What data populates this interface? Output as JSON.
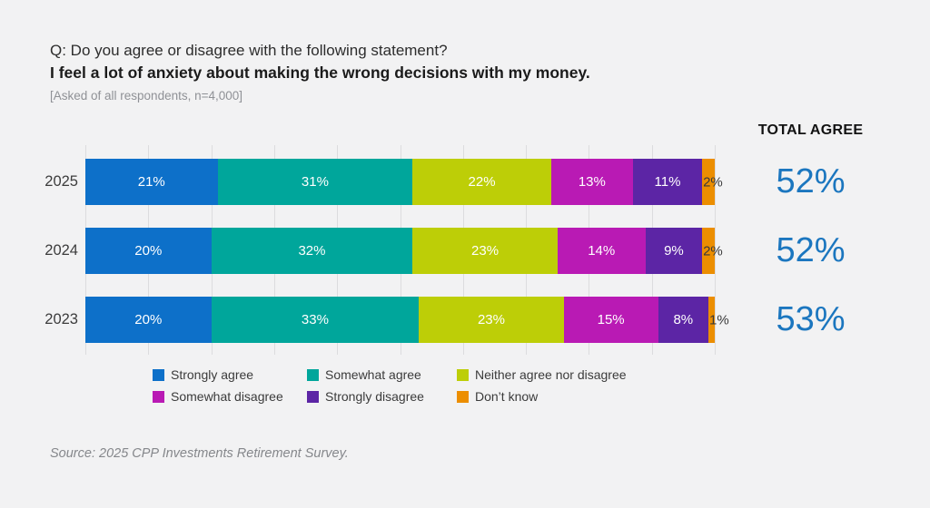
{
  "header": {
    "question_prefix": "Q: Do you agree or disagree with the following statement?",
    "statement": "I feel a lot of anxiety about making the wrong decisions with my money.",
    "note": "[Asked of all respondents, n=4,000]"
  },
  "total_agree": {
    "label": "TOTAL AGREE",
    "display_values": [
      "52%",
      "52%",
      "53%"
    ],
    "color": "#1b76bf"
  },
  "chart_data": {
    "type": "bar",
    "orientation": "horizontal-stacked",
    "title": "I feel a lot of anxiety about making the wrong decisions with my money.",
    "categories": [
      "2025",
      "2024",
      "2023"
    ],
    "series": [
      {
        "name": "Strongly agree",
        "color": "#0d70c9",
        "values": [
          21,
          20,
          20
        ]
      },
      {
        "name": "Somewhat agree",
        "color": "#00a69b",
        "values": [
          31,
          32,
          33
        ]
      },
      {
        "name": "Neither agree nor disagree",
        "color": "#bdce07",
        "values": [
          22,
          23,
          23
        ]
      },
      {
        "name": "Somewhat disagree",
        "color": "#b91ab4",
        "values": [
          13,
          14,
          15
        ]
      },
      {
        "name": "Strongly disagree",
        "color": "#5c25a5",
        "values": [
          11,
          9,
          8
        ]
      },
      {
        "name": "Don’t know",
        "color": "#ec8e00",
        "values": [
          2,
          2,
          1
        ]
      }
    ],
    "total_agree": [
      52,
      52,
      53
    ],
    "xlim": [
      0,
      100
    ],
    "unit": "%",
    "gridlines": "vertical every 10%",
    "gridline_color": "#dcdcde",
    "legend_position": "bottom"
  },
  "legend": {
    "items": [
      {
        "label": "Strongly agree",
        "color": "#0d70c9"
      },
      {
        "label": "Somewhat agree",
        "color": "#00a69b"
      },
      {
        "label": "Neither agree nor disagree",
        "color": "#bdce07"
      },
      {
        "label": "Somewhat disagree",
        "color": "#b91ab4"
      },
      {
        "label": "Strongly disagree",
        "color": "#5c25a5"
      },
      {
        "label": "Don’t know",
        "color": "#ec8e00"
      }
    ]
  },
  "source": "Source: 2025 CPP Investments Retirement Survey."
}
